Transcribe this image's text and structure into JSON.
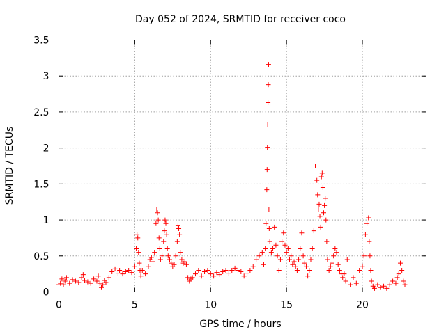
{
  "chart_data": {
    "type": "scatter",
    "title": "Day 052 of 2024, SRMTID for receiver coco",
    "xlabel": "GPS time / hours",
    "ylabel": "SRMTID / TECUs",
    "xlim": [
      0,
      24.2
    ],
    "ylim": [
      0,
      3.5
    ],
    "x_ticks": [
      0,
      5,
      10,
      15,
      20
    ],
    "y_ticks": [
      0,
      0.5,
      1,
      1.5,
      2,
      2.5,
      3,
      3.5
    ],
    "x_tick_labels": [
      "0",
      "5",
      "10",
      "15",
      "20"
    ],
    "y_tick_labels": [
      "0",
      "0.5",
      "1",
      "1.5",
      "2",
      "2.5",
      "3",
      "3.5"
    ],
    "grid": true,
    "marker": "+",
    "color": "#ff0000",
    "series": [
      {
        "name": "SRMTID",
        "x": [
          0.0,
          0.1,
          0.2,
          0.3,
          0.4,
          0.5,
          0.7,
          0.9,
          1.1,
          1.3,
          1.5,
          1.6,
          1.7,
          1.9,
          2.1,
          2.3,
          2.5,
          2.6,
          2.7,
          2.8,
          2.9,
          3.0,
          3.1,
          3.3,
          3.5,
          3.7,
          3.9,
          4.0,
          4.2,
          4.4,
          4.6,
          4.8,
          5.0,
          5.1,
          5.15,
          5.2,
          5.25,
          5.3,
          5.35,
          5.4,
          5.5,
          5.7,
          5.9,
          6.0,
          6.1,
          6.2,
          6.3,
          6.4,
          6.45,
          6.5,
          6.55,
          6.6,
          6.65,
          6.7,
          6.8,
          6.9,
          6.95,
          7.0,
          7.05,
          7.1,
          7.15,
          7.2,
          7.3,
          7.4,
          7.5,
          7.6,
          7.7,
          7.8,
          7.85,
          7.9,
          7.95,
          8.0,
          8.1,
          8.2,
          8.3,
          8.4,
          8.5,
          8.6,
          8.7,
          8.8,
          9.0,
          9.2,
          9.4,
          9.6,
          9.8,
          10.0,
          10.2,
          10.4,
          10.6,
          10.8,
          11.0,
          11.2,
          11.4,
          11.6,
          11.8,
          12.0,
          12.2,
          12.4,
          12.6,
          12.8,
          13.0,
          13.2,
          13.4,
          13.5,
          13.6,
          13.65,
          13.7,
          13.72,
          13.74,
          13.76,
          13.78,
          13.8,
          13.82,
          13.84,
          13.86,
          13.9,
          14.0,
          14.1,
          14.2,
          14.3,
          14.4,
          14.5,
          14.6,
          14.7,
          14.8,
          14.9,
          15.0,
          15.1,
          15.2,
          15.3,
          15.4,
          15.5,
          15.6,
          15.7,
          15.8,
          15.9,
          16.0,
          16.1,
          16.2,
          16.3,
          16.4,
          16.5,
          16.6,
          16.7,
          16.8,
          16.9,
          17.0,
          17.05,
          17.1,
          17.15,
          17.2,
          17.25,
          17.3,
          17.35,
          17.4,
          17.45,
          17.5,
          17.55,
          17.6,
          17.65,
          17.7,
          17.8,
          17.9,
          18.0,
          18.1,
          18.2,
          18.3,
          18.4,
          18.5,
          18.6,
          18.7,
          18.8,
          18.9,
          19.0,
          19.2,
          19.4,
          19.6,
          19.8,
          20.0,
          20.1,
          20.2,
          20.3,
          20.4,
          20.45,
          20.5,
          20.55,
          20.6,
          20.7,
          20.8,
          21.0,
          21.2,
          21.4,
          21.6,
          21.8,
          22.0,
          22.2,
          22.3,
          22.4,
          22.5,
          22.6,
          22.7,
          22.8
        ],
        "y": [
          0.1,
          0.12,
          0.18,
          0.1,
          0.15,
          0.2,
          0.12,
          0.17,
          0.15,
          0.13,
          0.2,
          0.24,
          0.16,
          0.14,
          0.12,
          0.18,
          0.15,
          0.22,
          0.12,
          0.06,
          0.1,
          0.16,
          0.13,
          0.2,
          0.28,
          0.32,
          0.26,
          0.3,
          0.25,
          0.28,
          0.3,
          0.27,
          0.35,
          0.6,
          0.8,
          0.75,
          0.55,
          0.4,
          0.3,
          0.22,
          0.3,
          0.25,
          0.35,
          0.45,
          0.48,
          0.42,
          0.55,
          0.95,
          1.15,
          1.1,
          1.0,
          0.75,
          0.6,
          0.45,
          0.5,
          0.7,
          0.85,
          1.0,
          0.95,
          0.8,
          0.6,
          0.5,
          0.45,
          0.4,
          0.35,
          0.38,
          0.5,
          0.7,
          0.92,
          0.88,
          0.8,
          0.55,
          0.45,
          0.4,
          0.42,
          0.38,
          0.2,
          0.15,
          0.18,
          0.2,
          0.25,
          0.3,
          0.22,
          0.28,
          0.3,
          0.25,
          0.22,
          0.27,
          0.24,
          0.28,
          0.3,
          0.26,
          0.3,
          0.33,
          0.3,
          0.28,
          0.22,
          0.26,
          0.3,
          0.35,
          0.45,
          0.5,
          0.55,
          0.38,
          0.6,
          0.95,
          1.42,
          1.7,
          2.01,
          2.32,
          2.63,
          2.88,
          3.16,
          1.15,
          0.88,
          0.7,
          0.55,
          0.6,
          0.9,
          0.65,
          0.5,
          0.3,
          0.45,
          0.7,
          0.82,
          0.65,
          0.55,
          0.6,
          0.45,
          0.5,
          0.38,
          0.42,
          0.35,
          0.3,
          0.45,
          0.6,
          0.82,
          0.5,
          0.4,
          0.35,
          0.22,
          0.3,
          0.45,
          0.6,
          0.85,
          1.75,
          1.55,
          1.35,
          1.15,
          1.22,
          1.05,
          0.9,
          1.6,
          1.65,
          1.45,
          1.1,
          1.2,
          1.3,
          1.0,
          0.7,
          0.45,
          0.3,
          0.35,
          0.4,
          0.5,
          0.6,
          0.55,
          0.38,
          0.3,
          0.25,
          0.2,
          0.25,
          0.15,
          0.45,
          0.1,
          0.2,
          0.12,
          0.3,
          0.35,
          0.5,
          0.8,
          0.95,
          1.03,
          0.7,
          0.5,
          0.3,
          0.15,
          0.08,
          0.05,
          0.1,
          0.06,
          0.08,
          0.05,
          0.1,
          0.15,
          0.12,
          0.2,
          0.25,
          0.4,
          0.3,
          0.15,
          0.1
        ]
      }
    ]
  }
}
